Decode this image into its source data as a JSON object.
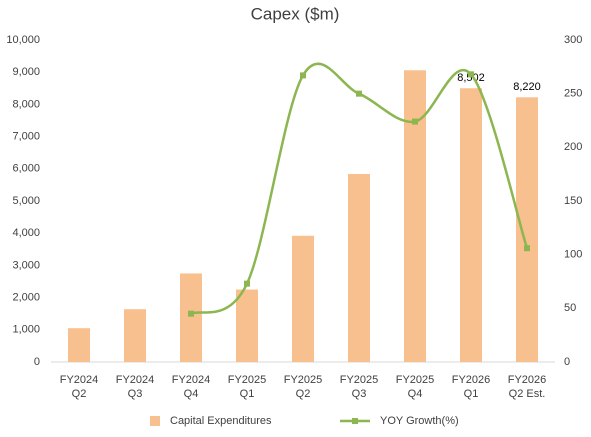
{
  "chart_data": {
    "type": "bar-line",
    "title": "Capex ($m)",
    "categories": [
      "FY2024 Q2",
      "FY2024 Q3",
      "FY2024 Q4",
      "FY2025 Q1",
      "FY2025 Q2",
      "FY2025 Q3",
      "FY2025 Q4",
      "FY2026 Q1",
      "FY2026 Q2 Est."
    ],
    "series": [
      {
        "name": "Capital Expenditures",
        "color": "#f8c08f",
        "type": "bar",
        "values": [
          1050,
          1640,
          2750,
          2250,
          3920,
          5840,
          9060,
          8502,
          8220
        ],
        "value_labels": [
          null,
          null,
          null,
          null,
          null,
          null,
          null,
          "8,502",
          "8,220"
        ]
      },
      {
        "name": "YOY Growth(%)",
        "color": "#8cb650",
        "type": "line",
        "axis": "y2",
        "values": [
          null,
          null,
          45,
          73,
          267,
          250,
          224,
          268,
          106
        ]
      }
    ],
    "ylim": [
      0,
      10000
    ],
    "yticks": [
      0,
      {
        "value": 1000,
        "label": "1,000"
      },
      {
        "value": 2000,
        "label": "2,000"
      },
      {
        "value": 3000,
        "label": "3,000"
      },
      {
        "value": 4000,
        "label": "4,000"
      },
      {
        "value": 5000,
        "label": "5,000"
      },
      {
        "value": 6000,
        "label": "6,000"
      },
      {
        "value": 7000,
        "label": "7,000"
      },
      {
        "value": 8000,
        "label": "8,000"
      },
      {
        "value": 9000,
        "label": "9,000"
      },
      {
        "value": 10000,
        "label": "10,000"
      }
    ],
    "y2lim": [
      0,
      300
    ],
    "y2ticks": [
      0,
      50,
      100,
      150,
      200,
      250,
      300
    ],
    "legend": "bottom"
  }
}
